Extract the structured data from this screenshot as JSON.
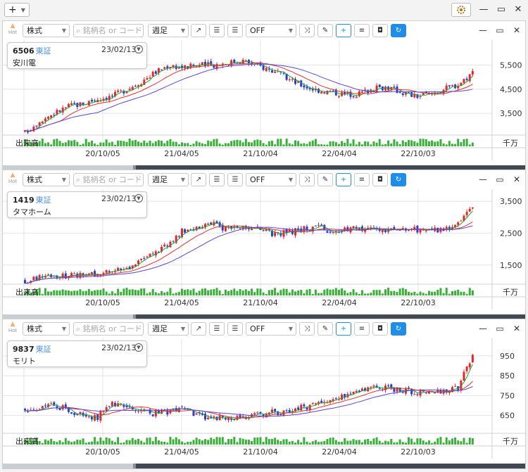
{
  "app": {
    "add_icon": "plus-icon",
    "settings_icon": "gear-icon",
    "window_controls": [
      "minimize-icon",
      "maximize-icon",
      "close-icon"
    ]
  },
  "toolbar": {
    "hot_label": "Hot",
    "type_value": "株式",
    "search_placeholder": "銘柄名 or コード",
    "period_value": "週足",
    "indicator_value": "OFF"
  },
  "axis_dates": [
    "20/10/05",
    "21/04/05",
    "21/10/04",
    "22/04/04",
    "22/10/03"
  ],
  "volume_label": "出来高",
  "volume_unit": "千万",
  "colors": {
    "up": "#e8262a",
    "down": "#2a3cd8",
    "ma_short": "#1aa52a",
    "ma_mid": "#e23030",
    "ma_long": "#5a45d8",
    "volume": "#3ab03a",
    "accent": "#1e8ee8"
  },
  "panels": [
    {
      "code": "6506",
      "exchange": "東証",
      "date": "23/02/13",
      "name": "安川電",
      "chart_data": {
        "type": "candlestick",
        "y_ticks": [
          3500,
          4500,
          5500
        ],
        "ylim": [
          2600,
          6300
        ],
        "series": [
          {
            "name": "close",
            "values": [
              2700,
              3200,
              3500,
              3800,
              3900,
              4100,
              4200,
              4500,
              4800,
              5200,
              5500,
              5400,
              5500,
              5500,
              5600,
              5700,
              5500,
              5300,
              5000,
              4700,
              4500,
              4400,
              4300,
              4300,
              4500,
              4600,
              4400,
              4200,
              4300,
              4500,
              4700,
              5200
            ]
          }
        ]
      }
    },
    {
      "code": "1419",
      "exchange": "東証",
      "date": "23/02/13",
      "name": "タマホーム",
      "chart_data": {
        "type": "candlestick",
        "y_ticks": [
          1500,
          2500,
          3500
        ],
        "ylim": [
          900,
          3700
        ],
        "series": [
          {
            "name": "close",
            "values": [
              1000,
              1150,
              1200,
              1150,
              1200,
              1250,
              1300,
              1400,
              1600,
              1900,
              2200,
              2600,
              2700,
              2800,
              2600,
              2700,
              2600,
              2500,
              2500,
              2600,
              2700,
              2600,
              2600,
              2700,
              2600,
              2600,
              2650,
              2600,
              2550,
              2650,
              2800,
              3300
            ]
          }
        ]
      }
    },
    {
      "code": "9837",
      "exchange": "東証",
      "date": "23/02/13",
      "name": "モリト",
      "chart_data": {
        "type": "candlestick",
        "y_ticks": [
          650,
          750,
          850,
          950
        ],
        "ylim": [
          560,
          1010
        ],
        "series": [
          {
            "name": "close",
            "values": [
              680,
              690,
              700,
              680,
              650,
              640,
              720,
              680,
              670,
              660,
              670,
              690,
              650,
              640,
              630,
              640,
              650,
              670,
              660,
              690,
              700,
              720,
              750,
              780,
              800,
              790,
              780,
              770,
              760,
              770,
              790,
              960
            ]
          }
        ]
      }
    }
  ]
}
